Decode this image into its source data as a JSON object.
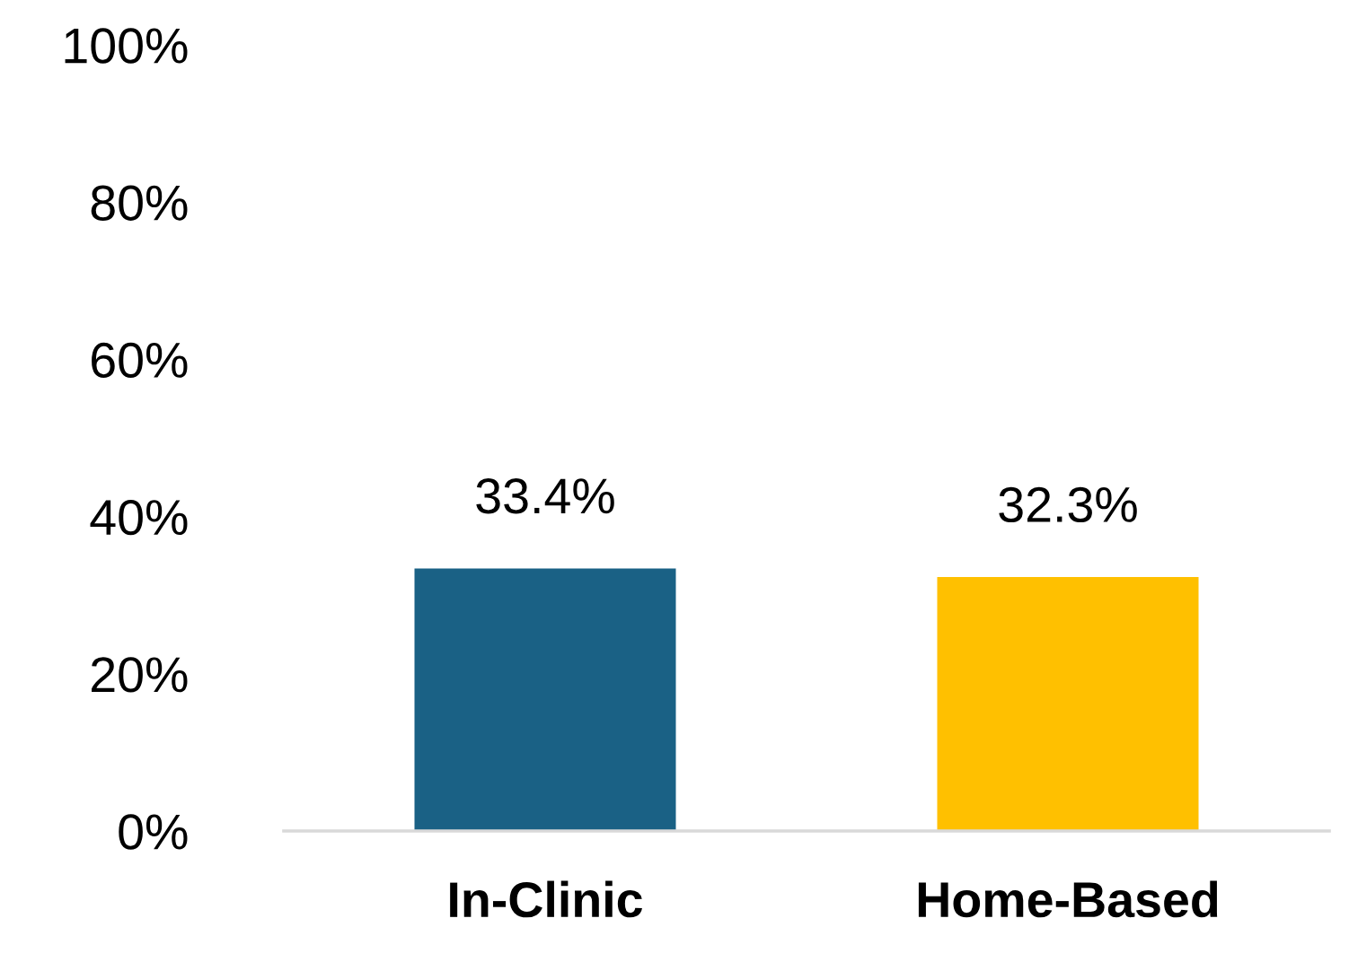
{
  "chart_data": {
    "type": "bar",
    "categories": [
      "In-Clinic",
      "Home-Based"
    ],
    "values": [
      33.4,
      32.3
    ],
    "colors": [
      "#1a6185",
      "#ffc000"
    ],
    "value_labels": [
      "33.4%",
      "32.3%"
    ],
    "ylim": [
      0,
      100
    ],
    "yticks": [
      {
        "value": 0,
        "label": "0%"
      },
      {
        "value": 20,
        "label": "20%"
      },
      {
        "value": 40,
        "label": "40%"
      },
      {
        "value": 60,
        "label": "60%"
      },
      {
        "value": 80,
        "label": "80%"
      },
      {
        "value": 100,
        "label": "100%"
      }
    ],
    "grid": false,
    "legend": false
  }
}
